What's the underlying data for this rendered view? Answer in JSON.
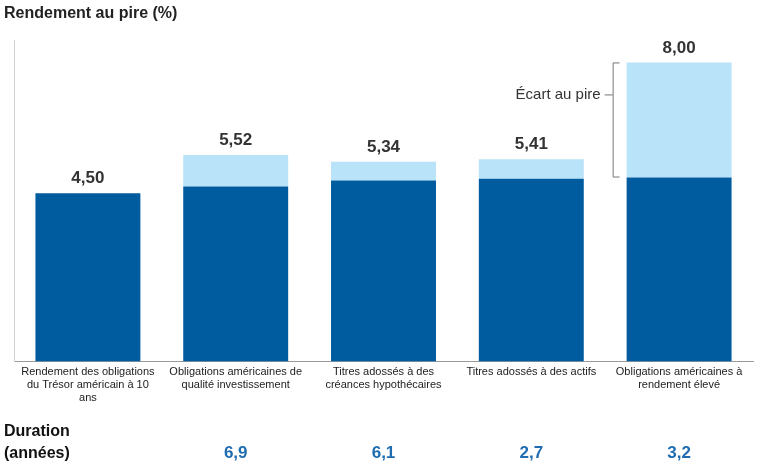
{
  "chart_data": {
    "type": "bar",
    "title": "Rendement au pire (%)",
    "categories": [
      "Rendement des obligations du Trésor américain à 10 ans",
      "Obligations américaines de qualité investissement",
      "Titres adossés à des créances hypothécaires",
      "Titres adossés à des actifs",
      "Obligations américaines à rendement élevé"
    ],
    "series": [
      {
        "color": "#005b9f",
        "values": [
          4.5,
          4.68,
          4.84,
          4.89,
          4.92
        ]
      },
      {
        "name": "Écart au pire",
        "color": "#b9e3f9",
        "values": [
          null,
          0.84,
          0.5,
          0.52,
          3.08
        ]
      }
    ],
    "totals": [
      4.5,
      5.52,
      5.34,
      5.41,
      8.0
    ],
    "total_labels": [
      "4,50",
      "5,52",
      "5,34",
      "5,41",
      "8,00"
    ],
    "annotation": {
      "text": "Écart au pire",
      "series": 1,
      "category": 4
    },
    "duration": {
      "label_lines": [
        "Duration",
        "(années)"
      ],
      "values": [
        null,
        6.9,
        6.1,
        2.7,
        3.2
      ],
      "value_labels": [
        null,
        "6,9",
        "6,1",
        "2,7",
        "3,2"
      ]
    },
    "ylim": [
      0,
      8.6
    ],
    "yticks": [],
    "stacked": true,
    "grid": false,
    "tick_labels": "x"
  }
}
